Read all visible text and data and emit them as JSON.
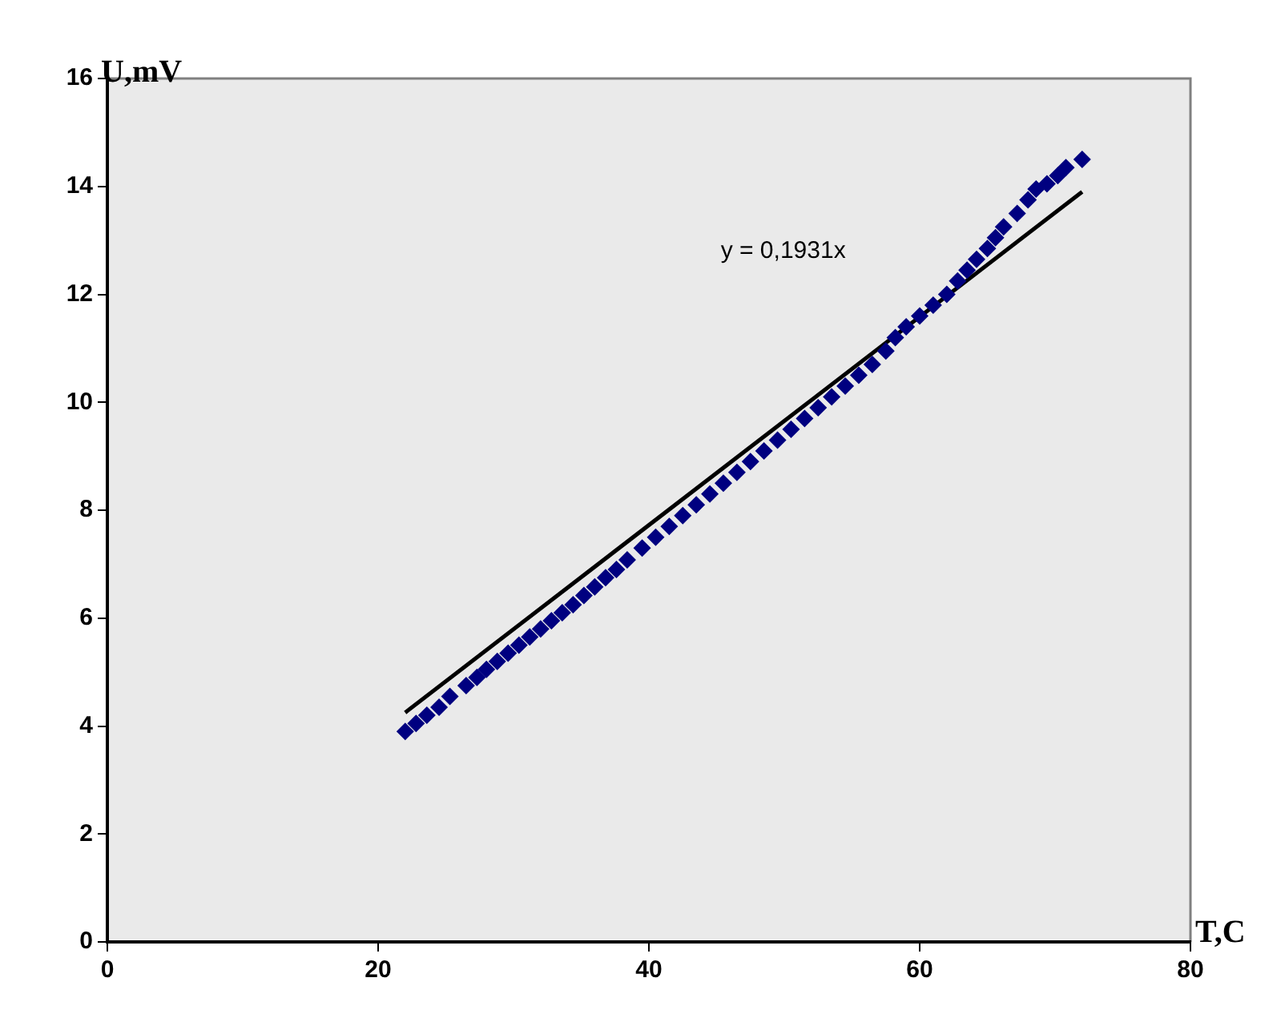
{
  "chart_data": {
    "type": "scatter",
    "xlabel": "T,C",
    "ylabel": "U,mV",
    "xlim": [
      0,
      80
    ],
    "xticks": [
      0,
      20,
      40,
      60,
      80
    ],
    "ylim": [
      0,
      16
    ],
    "yticks": [
      0,
      2,
      4,
      6,
      8,
      10,
      12,
      14,
      16
    ],
    "grid": false,
    "legend": false,
    "marker": "diamond",
    "series": [
      {
        "color": "#000080",
        "x": [
          22,
          22.8,
          23.6,
          24.5,
          25.3,
          26.5,
          27.3,
          28,
          28.8,
          29.6,
          30.4,
          31.2,
          32,
          32.8,
          33.6,
          34.4,
          35.2,
          36,
          36.8,
          37.6,
          38.4,
          39.5,
          40.5,
          41.5,
          42.5,
          43.5,
          44.5,
          45.5,
          46.5,
          47.5,
          48.5,
          49.5,
          50.5,
          51.5,
          52.5,
          53.5,
          54.5,
          55.5,
          56.5,
          57.5,
          58.2,
          59,
          60,
          61,
          62,
          62.8,
          63.5,
          64.2,
          65,
          65.6,
          66.2,
          67.2,
          68,
          68.6,
          69.4,
          70.2,
          70.8,
          72
        ],
        "values": [
          3.9,
          4.05,
          4.2,
          4.35,
          4.55,
          4.75,
          4.9,
          5.05,
          5.2,
          5.35,
          5.5,
          5.65,
          5.8,
          5.95,
          6.1,
          6.25,
          6.42,
          6.58,
          6.75,
          6.9,
          7.08,
          7.3,
          7.5,
          7.7,
          7.9,
          8.1,
          8.3,
          8.5,
          8.7,
          8.9,
          9.1,
          9.3,
          9.5,
          9.7,
          9.9,
          10.1,
          10.3,
          10.5,
          10.7,
          10.95,
          11.2,
          11.4,
          11.6,
          11.8,
          12,
          12.25,
          12.45,
          12.65,
          12.85,
          13.05,
          13.25,
          13.5,
          13.75,
          13.95,
          14.05,
          14.2,
          14.35,
          14.5
        ]
      },
      {
        "type": "line",
        "color": "#000000",
        "marker": "none",
        "x": [
          22,
          72
        ],
        "values": [
          4.25,
          13.9
        ]
      }
    ],
    "annotations": [
      "y = 0,1931x"
    ]
  }
}
